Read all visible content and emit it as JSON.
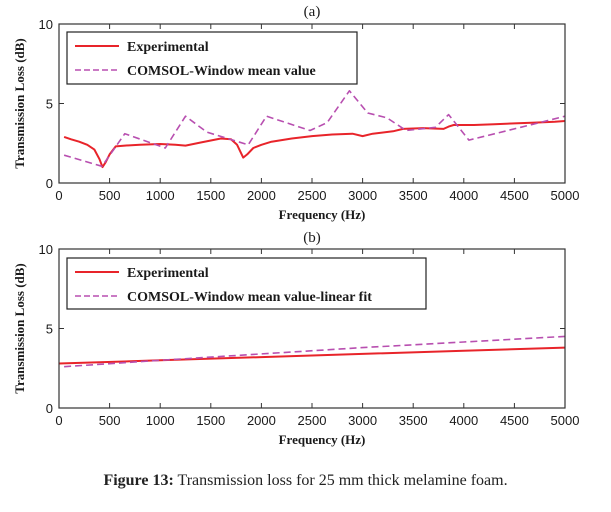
{
  "caption": {
    "label": "Figure 13:",
    "text": " Transmission loss for 25 mm thick melamine foam."
  },
  "colors": {
    "experimental": "#e8242a",
    "comsol": "#b84fb0",
    "axis": "#333333",
    "legend_border": "#222222"
  },
  "chart_data": [
    {
      "id": "a",
      "type": "line",
      "title": "(a)",
      "xlabel": "Frequency (Hz)",
      "ylabel": "Transmission Loss (dB)",
      "xlim": [
        0,
        5000
      ],
      "ylim": [
        0,
        10
      ],
      "xticks": [
        0,
        500,
        1000,
        1500,
        2000,
        2500,
        3000,
        3500,
        4000,
        4500,
        5000
      ],
      "yticks": [
        0,
        5,
        10
      ],
      "grid": false,
      "legend_position": "top-left",
      "series": [
        {
          "name": "Experimental",
          "style": "solid",
          "color_key": "experimental",
          "x": [
            50,
            120,
            200,
            280,
            350,
            400,
            430,
            460,
            500,
            560,
            650,
            800,
            1000,
            1150,
            1250,
            1400,
            1600,
            1700,
            1760,
            1820,
            1860,
            1920,
            2000,
            2100,
            2300,
            2500,
            2700,
            2900,
            3000,
            3100,
            3300,
            3400,
            3600,
            3800,
            3850,
            3900,
            4100,
            4300,
            4500,
            4700,
            4900,
            5000
          ],
          "y": [
            2.9,
            2.75,
            2.6,
            2.4,
            2.1,
            1.5,
            1.0,
            1.3,
            1.8,
            2.3,
            2.35,
            2.4,
            2.45,
            2.4,
            2.35,
            2.55,
            2.8,
            2.75,
            2.4,
            1.6,
            1.8,
            2.2,
            2.4,
            2.6,
            2.8,
            2.95,
            3.05,
            3.1,
            2.95,
            3.1,
            3.25,
            3.4,
            3.45,
            3.4,
            3.55,
            3.65,
            3.65,
            3.7,
            3.75,
            3.8,
            3.85,
            3.9
          ]
        },
        {
          "name": "COMSOL-Window mean value",
          "style": "dashed",
          "color_key": "comsol",
          "x": [
            50,
            425,
            650,
            1050,
            1250,
            1460,
            1870,
            2050,
            2480,
            2650,
            2870,
            3050,
            3240,
            3430,
            3720,
            3850,
            4050,
            4750,
            5000
          ],
          "y": [
            1.75,
            1.05,
            3.1,
            2.2,
            4.2,
            3.2,
            2.4,
            4.2,
            3.3,
            3.8,
            5.8,
            4.4,
            4.1,
            3.3,
            3.5,
            4.3,
            2.7,
            3.8,
            4.2
          ]
        }
      ]
    },
    {
      "id": "b",
      "type": "line",
      "title": "(b)",
      "xlabel": "Frequency (Hz)",
      "ylabel": "Transmission Loss (dB)",
      "xlim": [
        0,
        5000
      ],
      "ylim": [
        0,
        10
      ],
      "xticks": [
        0,
        500,
        1000,
        1500,
        2000,
        2500,
        3000,
        3500,
        4000,
        4500,
        5000
      ],
      "yticks": [
        0,
        5,
        10
      ],
      "grid": false,
      "legend_position": "top-left",
      "series": [
        {
          "name": "Experimental",
          "style": "solid",
          "color_key": "experimental",
          "x": [
            0,
            1000,
            2000,
            3000,
            4000,
            5000
          ],
          "y": [
            2.8,
            3.0,
            3.2,
            3.4,
            3.6,
            3.8
          ]
        },
        {
          "name": "COMSOL-Window mean value-linear fit",
          "style": "dashed",
          "color_key": "comsol",
          "x": [
            50,
            1000,
            2000,
            3000,
            4000,
            5000
          ],
          "y": [
            2.6,
            3.0,
            3.4,
            3.8,
            4.15,
            4.5
          ]
        }
      ]
    }
  ]
}
